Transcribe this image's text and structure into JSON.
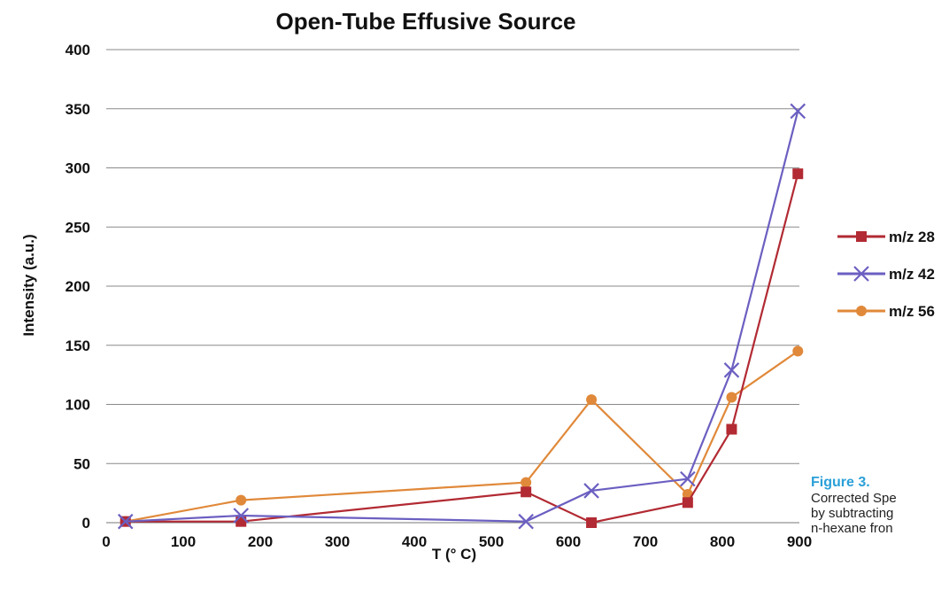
{
  "chart_data": {
    "type": "line",
    "title": "Open-Tube Effusive Source",
    "xlabel": "T (° C)",
    "ylabel": "Intensity (a.u.)",
    "xlim": [
      0,
      900
    ],
    "ylim": [
      0,
      400
    ],
    "xticks": [
      0,
      100,
      200,
      300,
      400,
      500,
      600,
      700,
      800,
      900
    ],
    "yticks": [
      0,
      50,
      100,
      150,
      200,
      250,
      300,
      350,
      400
    ],
    "grid": "horizontal",
    "legend_position": "right",
    "series": [
      {
        "name": "m/z 28",
        "color": "#b22a33",
        "marker": "square",
        "x": [
          25,
          175,
          545,
          630,
          755,
          812,
          898
        ],
        "y": [
          1,
          1,
          26,
          0,
          17,
          79,
          295
        ]
      },
      {
        "name": "m/z 42",
        "color": "#6b5fc1",
        "marker": "x",
        "x": [
          25,
          175,
          545,
          630,
          755,
          812,
          898
        ],
        "y": [
          1,
          6,
          1,
          27,
          37,
          129,
          348
        ]
      },
      {
        "name": "m/z 56",
        "color": "#e0893a",
        "marker": "circle",
        "x": [
          25,
          175,
          545,
          630,
          755,
          812,
          898
        ],
        "y": [
          1,
          19,
          34,
          104,
          24,
          106,
          145
        ]
      }
    ]
  },
  "caption": {
    "figure_label": "Figure 3.",
    "lines": [
      "Corrected Spe",
      "by subtracting",
      "n-hexane fron"
    ]
  }
}
